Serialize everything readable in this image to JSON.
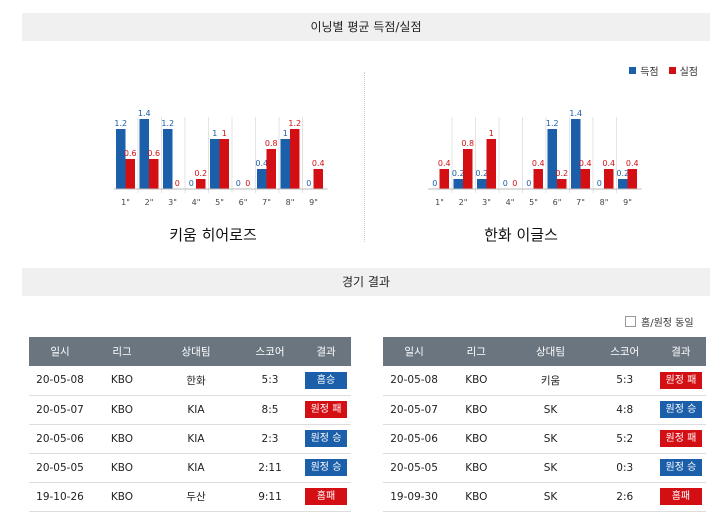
{
  "inning_section": {
    "title": "이닝별 평균 득점/실점",
    "legend": [
      {
        "label": "득점",
        "color": "#1b5faa"
      },
      {
        "label": "실점",
        "color": "#d40f14"
      }
    ]
  },
  "charts": [
    {
      "team": "키움 히어로즈",
      "chart_data": {
        "type": "bar",
        "categories": [
          "1\"",
          "2\"",
          "3\"",
          "4\"",
          "5\"",
          "6\"",
          "7\"",
          "8\"",
          "9\""
        ],
        "series": [
          {
            "name": "득점",
            "values": [
              1.2,
              1.4,
              1.2,
              0,
              1,
              0,
              0.4,
              1,
              0
            ],
            "labels": [
              "1.2",
              "1.4",
              "1.2",
              "0",
              "1",
              "0",
              "0.4",
              "1",
              "0"
            ]
          },
          {
            "name": "실점",
            "values": [
              0.6,
              0.6,
              0,
              0.2,
              1,
              0,
              0.8,
              1.2,
              0.4
            ],
            "labels": [
              "0.6",
              "0.6",
              "0",
              "0.2",
              "1",
              "0",
              "0.8",
              "1.2",
              "0.4"
            ]
          }
        ],
        "ylim": [
          0,
          1.4
        ]
      }
    },
    {
      "team": "한화 이글스",
      "chart_data": {
        "type": "bar",
        "categories": [
          "1\"",
          "2\"",
          "3\"",
          "4\"",
          "5\"",
          "6\"",
          "7\"",
          "8\"",
          "9\""
        ],
        "series": [
          {
            "name": "득점",
            "values": [
              0,
              0.2,
              0.2,
              0,
              0,
              1.2,
              1.4,
              0,
              0.2
            ],
            "labels": [
              "0",
              "0.2",
              "0.2",
              "0",
              "0",
              "1.2",
              "1.4",
              "0",
              "0.2"
            ]
          },
          {
            "name": "실점",
            "values": [
              0.4,
              0.8,
              1,
              0,
              0.4,
              0.2,
              0.4,
              0.4,
              0.4
            ],
            "labels": [
              "0.4",
              "0.8",
              "1",
              "0",
              "0.4",
              "0.2",
              "0.4",
              "0.4",
              "0.4"
            ]
          }
        ],
        "ylim": [
          0,
          1.4
        ]
      }
    }
  ],
  "results_section": {
    "title": "경기 결과",
    "filter_label": "홈/원정 동일",
    "columns": [
      "일시",
      "리그",
      "상대팀",
      "스코어",
      "결과"
    ],
    "tables": [
      {
        "rows": [
          {
            "date": "20-05-08",
            "league": "KBO",
            "opponent": "한화",
            "score": "5:3",
            "result": "홈승",
            "type": "win"
          },
          {
            "date": "20-05-07",
            "league": "KBO",
            "opponent": "KIA",
            "score": "8:5",
            "result": "원정 패",
            "type": "lose"
          },
          {
            "date": "20-05-06",
            "league": "KBO",
            "opponent": "KIA",
            "score": "2:3",
            "result": "원정 승",
            "type": "win"
          },
          {
            "date": "20-05-05",
            "league": "KBO",
            "opponent": "KIA",
            "score": "2:11",
            "result": "원정 승",
            "type": "win"
          },
          {
            "date": "19-10-26",
            "league": "KBO",
            "opponent": "두산",
            "score": "9:11",
            "result": "홈패",
            "type": "lose"
          }
        ]
      },
      {
        "rows": [
          {
            "date": "20-05-08",
            "league": "KBO",
            "opponent": "키움",
            "score": "5:3",
            "result": "원정 패",
            "type": "lose"
          },
          {
            "date": "20-05-07",
            "league": "KBO",
            "opponent": "SK",
            "score": "4:8",
            "result": "원정 승",
            "type": "win"
          },
          {
            "date": "20-05-06",
            "league": "KBO",
            "opponent": "SK",
            "score": "5:2",
            "result": "원정 패",
            "type": "lose"
          },
          {
            "date": "20-05-05",
            "league": "KBO",
            "opponent": "SK",
            "score": "0:3",
            "result": "원정 승",
            "type": "win"
          },
          {
            "date": "19-09-30",
            "league": "KBO",
            "opponent": "SK",
            "score": "2:6",
            "result": "홈패",
            "type": "lose"
          }
        ]
      }
    ]
  }
}
